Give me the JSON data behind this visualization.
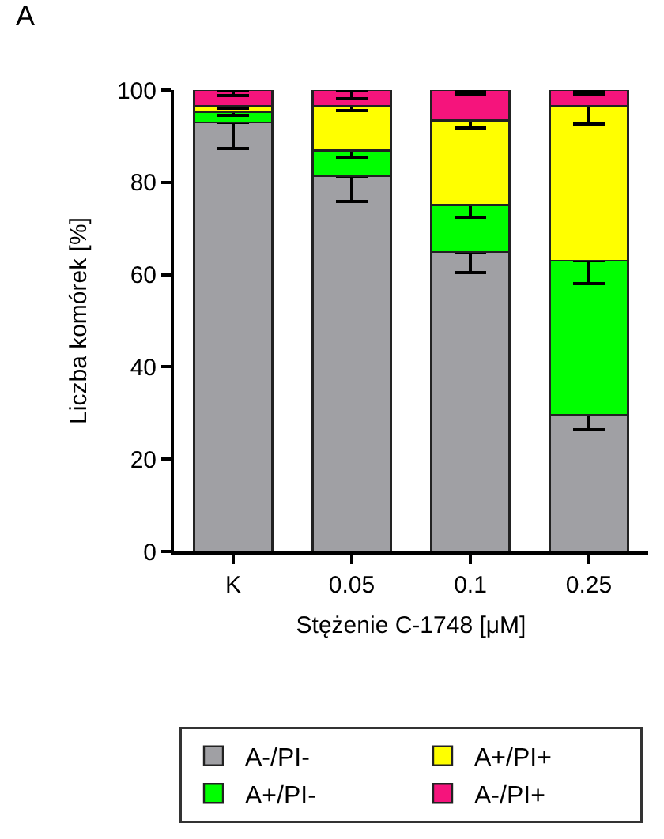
{
  "chart_data": {
    "type": "bar",
    "stacked": true,
    "title": "A",
    "xlabel": "Stężenie C-1748 [μM]",
    "ylabel": "Liczba komórek [%]",
    "categories": [
      "K",
      "0.05",
      "0.1",
      "0.25"
    ],
    "series": [
      {
        "name": "A-/PI-",
        "color": "#a0a0a4",
        "values": [
          93.0,
          81.3,
          64.9,
          29.6
        ],
        "errors": [
          [
            87.3,
            93.0
          ],
          [
            75.9,
            81.3
          ],
          [
            60.5,
            64.9
          ],
          [
            26.4,
            29.6
          ]
        ]
      },
      {
        "name": "A+/PI-",
        "color": "#00ff00",
        "values": [
          2.3,
          5.6,
          10.2,
          33.4
        ],
        "errors": [
          [
            94.6,
            95.3
          ],
          [
            85.5,
            86.9
          ],
          [
            72.5,
            75.1
          ],
          [
            58.1,
            63.0
          ]
        ]
      },
      {
        "name": "A+/PI+",
        "color": "#ffff00",
        "values": [
          1.3,
          9.7,
          18.3,
          33.5
        ],
        "errors": [
          [
            96.1,
            96.6
          ],
          [
            95.5,
            96.6
          ],
          [
            91.7,
            93.4
          ],
          [
            92.6,
            96.5
          ]
        ]
      },
      {
        "name": "A-/PI+",
        "color": "#f5147c",
        "values": [
          3.4,
          3.4,
          6.6,
          3.5
        ],
        "errors": [
          [
            98.8,
            100.0
          ],
          [
            98.1,
            100.0
          ],
          [
            99.2,
            100.0
          ],
          [
            99.1,
            100.0
          ]
        ]
      }
    ],
    "ylim": [
      0,
      100
    ],
    "yticks": [
      0,
      20,
      40,
      60,
      80,
      100
    ],
    "legend": "bottom"
  }
}
